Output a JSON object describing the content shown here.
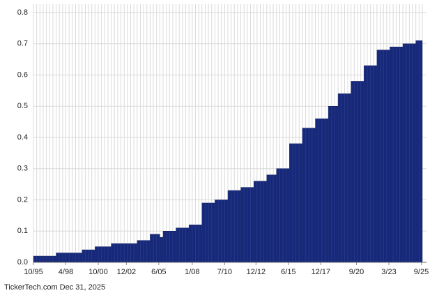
{
  "chart_data": {
    "type": "step-bar",
    "x": [
      1995.75,
      1997.5,
      1999.5,
      2000.5,
      2001.75,
      2003.75,
      2004.75,
      2005.5,
      2005.75,
      2006.75,
      2007.75,
      2008.75,
      2009.75,
      2010.75,
      2011.75,
      2012.75,
      2013.75,
      2014.5,
      2015.5,
      2016.5,
      2017.5,
      2018.5,
      2019.25,
      2020.25,
      2021.25,
      2022.25,
      2023.25,
      2024.25,
      2025.25
    ],
    "values": [
      0.02,
      0.03,
      0.04,
      0.05,
      0.06,
      0.07,
      0.09,
      0.08,
      0.1,
      0.11,
      0.12,
      0.19,
      0.2,
      0.23,
      0.24,
      0.26,
      0.28,
      0.3,
      0.38,
      0.43,
      0.46,
      0.5,
      0.54,
      0.58,
      0.63,
      0.68,
      0.69,
      0.7,
      0.71
    ],
    "color": "#16287a",
    "xlim": [
      1995.75,
      2025.75
    ],
    "xticks": [
      {
        "value": 1995.75,
        "label": "10/95"
      },
      {
        "value": 1998.25,
        "label": "4/98"
      },
      {
        "value": 2000.75,
        "label": "10/00"
      },
      {
        "value": 2002.92,
        "label": "12/02"
      },
      {
        "value": 2005.42,
        "label": "6/05"
      },
      {
        "value": 2008.0,
        "label": "1/08"
      },
      {
        "value": 2010.5,
        "label": "7/10"
      },
      {
        "value": 2012.92,
        "label": "12/12"
      },
      {
        "value": 2015.42,
        "label": "6/15"
      },
      {
        "value": 2017.92,
        "label": "12/17"
      },
      {
        "value": 2020.67,
        "label": "9/20"
      },
      {
        "value": 2023.17,
        "label": "3/23"
      },
      {
        "value": 2025.67,
        "label": "9/25"
      }
    ],
    "ylim": [
      0,
      0.8
    ],
    "yticks": [
      {
        "value": 0,
        "label": "0.0"
      },
      0.1,
      0.2,
      0.3,
      0.4,
      0.5,
      0.6,
      0.7,
      0.8
    ],
    "grid": true,
    "footer": "TickerTech.com  Dec 31, 2025"
  }
}
